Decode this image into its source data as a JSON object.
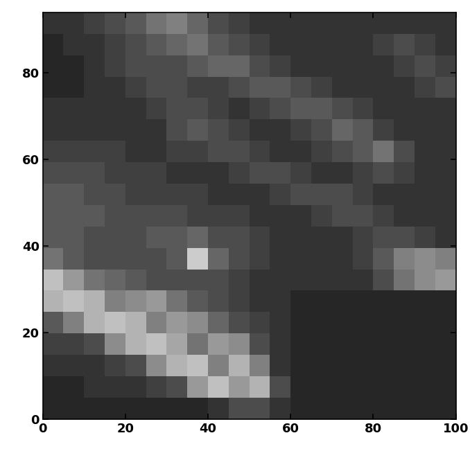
{
  "chart_data": {
    "type": "heatmap",
    "xlim": [
      0,
      100
    ],
    "ylim": [
      0,
      94
    ],
    "xticks": [
      0,
      20,
      40,
      60,
      80,
      100
    ],
    "yticks": [
      0,
      20,
      40,
      60,
      80
    ],
    "value_range": [
      0,
      1
    ],
    "cells": [
      [
        0.15,
        0.15,
        0.15,
        0.15,
        0.15,
        0.15,
        0.15,
        0.15,
        0.2,
        0.3,
        0.3,
        0.2,
        0.15,
        0.15,
        0.15,
        0.15,
        0.15,
        0.15,
        0.15,
        0.15
      ],
      [
        0.15,
        0.15,
        0.2,
        0.2,
        0.2,
        0.25,
        0.3,
        0.6,
        0.75,
        0.6,
        0.7,
        0.3,
        0.15,
        0.15,
        0.15,
        0.15,
        0.15,
        0.15,
        0.15,
        0.15
      ],
      [
        0.2,
        0.2,
        0.2,
        0.25,
        0.3,
        0.55,
        0.7,
        0.75,
        0.5,
        0.7,
        0.5,
        0.2,
        0.15,
        0.15,
        0.15,
        0.15,
        0.15,
        0.15,
        0.15,
        0.15
      ],
      [
        0.25,
        0.25,
        0.3,
        0.55,
        0.7,
        0.75,
        0.65,
        0.45,
        0.6,
        0.55,
        0.3,
        0.2,
        0.15,
        0.15,
        0.15,
        0.15,
        0.15,
        0.15,
        0.15,
        0.15
      ],
      [
        0.35,
        0.5,
        0.7,
        0.75,
        0.7,
        0.5,
        0.6,
        0.55,
        0.4,
        0.3,
        0.25,
        0.2,
        0.15,
        0.15,
        0.15,
        0.15,
        0.15,
        0.15,
        0.15,
        0.15
      ],
      [
        0.7,
        0.75,
        0.7,
        0.5,
        0.55,
        0.6,
        0.45,
        0.35,
        0.3,
        0.25,
        0.2,
        0.2,
        0.15,
        0.15,
        0.15,
        0.15,
        0.15,
        0.15,
        0.15,
        0.15
      ],
      [
        0.75,
        0.6,
        0.45,
        0.4,
        0.35,
        0.3,
        0.3,
        0.3,
        0.3,
        0.25,
        0.2,
        0.2,
        0.2,
        0.2,
        0.2,
        0.2,
        0.3,
        0.45,
        0.55,
        0.6
      ],
      [
        0.45,
        0.35,
        0.3,
        0.3,
        0.3,
        0.3,
        0.35,
        0.8,
        0.4,
        0.3,
        0.25,
        0.2,
        0.2,
        0.2,
        0.2,
        0.25,
        0.35,
        0.5,
        0.55,
        0.5
      ],
      [
        0.35,
        0.35,
        0.3,
        0.3,
        0.3,
        0.35,
        0.35,
        0.4,
        0.3,
        0.3,
        0.25,
        0.2,
        0.2,
        0.2,
        0.2,
        0.25,
        0.3,
        0.3,
        0.25,
        0.2
      ],
      [
        0.35,
        0.35,
        0.35,
        0.3,
        0.3,
        0.3,
        0.3,
        0.25,
        0.25,
        0.25,
        0.2,
        0.2,
        0.2,
        0.25,
        0.3,
        0.3,
        0.25,
        0.2,
        0.2,
        0.2
      ],
      [
        0.35,
        0.35,
        0.3,
        0.3,
        0.25,
        0.25,
        0.25,
        0.25,
        0.2,
        0.2,
        0.2,
        0.25,
        0.3,
        0.3,
        0.3,
        0.25,
        0.2,
        0.2,
        0.2,
        0.2
      ],
      [
        0.3,
        0.3,
        0.3,
        0.25,
        0.25,
        0.25,
        0.2,
        0.2,
        0.2,
        0.25,
        0.3,
        0.3,
        0.25,
        0.2,
        0.2,
        0.25,
        0.3,
        0.25,
        0.2,
        0.2
      ],
      [
        0.25,
        0.25,
        0.25,
        0.25,
        0.2,
        0.2,
        0.25,
        0.25,
        0.3,
        0.3,
        0.25,
        0.2,
        0.2,
        0.25,
        0.3,
        0.35,
        0.45,
        0.3,
        0.2,
        0.2
      ],
      [
        0.2,
        0.2,
        0.2,
        0.2,
        0.2,
        0.2,
        0.3,
        0.35,
        0.3,
        0.25,
        0.2,
        0.2,
        0.25,
        0.3,
        0.4,
        0.35,
        0.25,
        0.2,
        0.2,
        0.2
      ],
      [
        0.2,
        0.2,
        0.2,
        0.2,
        0.2,
        0.25,
        0.3,
        0.3,
        0.25,
        0.2,
        0.25,
        0.3,
        0.35,
        0.35,
        0.3,
        0.25,
        0.2,
        0.2,
        0.2,
        0.2
      ],
      [
        0.15,
        0.15,
        0.2,
        0.2,
        0.25,
        0.3,
        0.3,
        0.25,
        0.25,
        0.3,
        0.35,
        0.35,
        0.3,
        0.25,
        0.2,
        0.2,
        0.2,
        0.2,
        0.25,
        0.3
      ],
      [
        0.15,
        0.15,
        0.2,
        0.25,
        0.3,
        0.3,
        0.3,
        0.35,
        0.4,
        0.4,
        0.3,
        0.25,
        0.2,
        0.2,
        0.2,
        0.2,
        0.2,
        0.25,
        0.3,
        0.25
      ],
      [
        0.15,
        0.2,
        0.2,
        0.25,
        0.3,
        0.35,
        0.4,
        0.45,
        0.35,
        0.3,
        0.25,
        0.2,
        0.2,
        0.2,
        0.2,
        0.2,
        0.25,
        0.3,
        0.25,
        0.2
      ],
      [
        0.2,
        0.2,
        0.25,
        0.3,
        0.35,
        0.45,
        0.5,
        0.4,
        0.3,
        0.25,
        0.2,
        0.2,
        0.2,
        0.2,
        0.2,
        0.2,
        0.2,
        0.2,
        0.2,
        0.2
      ]
    ]
  }
}
